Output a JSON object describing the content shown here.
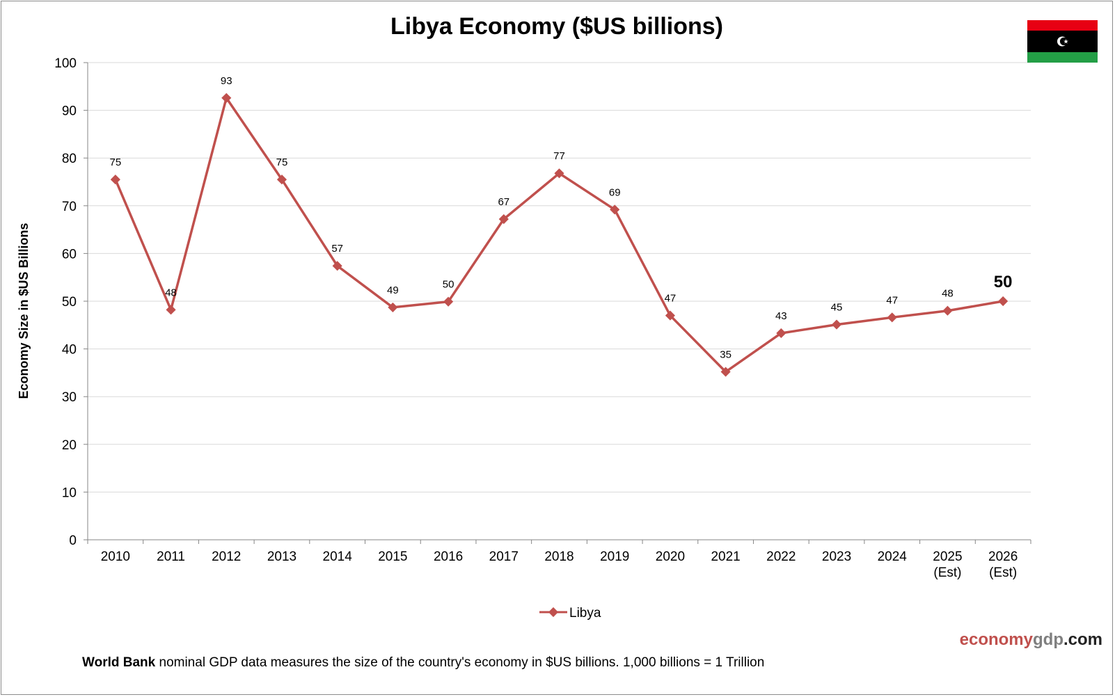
{
  "chart_data": {
    "type": "line",
    "title": "Libya Economy ($US billions)",
    "ylabel": "Economy Size in $US Billions",
    "xlabel": "",
    "ylim": [
      0,
      100
    ],
    "yticks": [
      0,
      10,
      20,
      30,
      40,
      50,
      60,
      70,
      80,
      90,
      100
    ],
    "grid": true,
    "legend_position": "bottom",
    "categories": [
      [
        "2010"
      ],
      [
        "2011"
      ],
      [
        "2012"
      ],
      [
        "2013"
      ],
      [
        "2014"
      ],
      [
        "2015"
      ],
      [
        "2016"
      ],
      [
        "2017"
      ],
      [
        "2018"
      ],
      [
        "2019"
      ],
      [
        "2020"
      ],
      [
        "2021"
      ],
      [
        "2022"
      ],
      [
        "2023"
      ],
      [
        "2024"
      ],
      [
        "2025",
        "(Est)"
      ],
      [
        "2026",
        "(Est)"
      ]
    ],
    "series": [
      {
        "name": "Libya",
        "color": "#c0504d",
        "values": [
          75.5,
          48.2,
          92.6,
          75.5,
          57.4,
          48.7,
          49.9,
          67.2,
          76.8,
          69.2,
          47.0,
          35.2,
          43.3,
          45.1,
          46.6,
          48.0,
          50.0
        ],
        "labels": [
          "75",
          "48",
          "93",
          "75",
          "57",
          "49",
          "50",
          "67",
          "77",
          "69",
          "47",
          "35",
          "43",
          "45",
          "47",
          "48",
          "50"
        ]
      }
    ]
  },
  "footer": {
    "bold": "World Bank",
    "text": " nominal  GDP data  measures  the size of the country's economy in $US billions.  1,000 billions  = 1 Trillion"
  },
  "brand": {
    "part1": "economy",
    "part2": "gdp",
    "part3": ".com"
  },
  "flag": {
    "top_color": "#e70013",
    "middle_color": "#000000",
    "bottom_color": "#239e46",
    "emblem_color": "#ffffff"
  }
}
